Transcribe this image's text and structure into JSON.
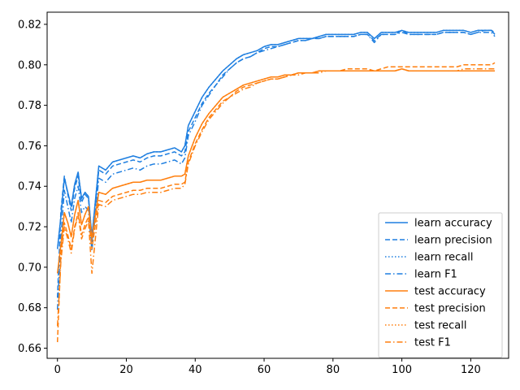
{
  "chart_data": {
    "type": "line",
    "title": "",
    "xlabel": "",
    "ylabel": "",
    "xlim": [
      -3,
      131
    ],
    "ylim": [
      0.655,
      0.826
    ],
    "xticks": [
      0,
      20,
      40,
      60,
      80,
      100,
      120
    ],
    "yticks": [
      0.66,
      0.68,
      0.7,
      0.72,
      0.74,
      0.76,
      0.78,
      0.8,
      0.82
    ],
    "ytick_labels": [
      "0.66",
      "0.68",
      "0.70",
      "0.72",
      "0.74",
      "0.76",
      "0.78",
      "0.80",
      "0.82"
    ],
    "grid": false,
    "legend": "lower-right",
    "colors": {
      "learn": "#1f7fe0",
      "test": "#ff7f0e"
    },
    "x": [
      0,
      1,
      2,
      3,
      4,
      5,
      6,
      7,
      8,
      9,
      10,
      12,
      14,
      16,
      18,
      20,
      22,
      24,
      26,
      28,
      30,
      32,
      34,
      36,
      37,
      38,
      40,
      42,
      44,
      46,
      48,
      50,
      52,
      54,
      56,
      58,
      60,
      62,
      64,
      66,
      68,
      70,
      72,
      74,
      76,
      78,
      80,
      82,
      84,
      86,
      88,
      90,
      92,
      94,
      96,
      98,
      100,
      102,
      104,
      106,
      108,
      110,
      112,
      114,
      116,
      118,
      120,
      122,
      124,
      126,
      127
    ],
    "series": [
      {
        "name": "learn accuracy",
        "group": "learn",
        "dash": "solid",
        "values": [
          0.709,
          0.725,
          0.744,
          0.737,
          0.73,
          0.741,
          0.747,
          0.734,
          0.737,
          0.735,
          0.715,
          0.75,
          0.748,
          0.752,
          0.753,
          0.754,
          0.755,
          0.754,
          0.756,
          0.757,
          0.757,
          0.758,
          0.759,
          0.757,
          0.76,
          0.77,
          0.777,
          0.784,
          0.789,
          0.793,
          0.797,
          0.8,
          0.803,
          0.805,
          0.806,
          0.807,
          0.809,
          0.81,
          0.81,
          0.811,
          0.812,
          0.813,
          0.813,
          0.813,
          0.814,
          0.815,
          0.815,
          0.815,
          0.815,
          0.815,
          0.816,
          0.816,
          0.813,
          0.816,
          0.816,
          0.816,
          0.817,
          0.816,
          0.816,
          0.816,
          0.816,
          0.816,
          0.817,
          0.817,
          0.817,
          0.817,
          0.816,
          0.817,
          0.817,
          0.817,
          0.815
        ]
      },
      {
        "name": "learn precision",
        "group": "learn",
        "dash": "dashed",
        "values": [
          0.685,
          0.728,
          0.745,
          0.736,
          0.728,
          0.739,
          0.745,
          0.732,
          0.736,
          0.734,
          0.712,
          0.748,
          0.746,
          0.75,
          0.751,
          0.752,
          0.753,
          0.752,
          0.754,
          0.755,
          0.755,
          0.756,
          0.757,
          0.755,
          0.757,
          0.767,
          0.774,
          0.781,
          0.786,
          0.79,
          0.795,
          0.798,
          0.801,
          0.803,
          0.804,
          0.806,
          0.808,
          0.809,
          0.809,
          0.81,
          0.811,
          0.812,
          0.812,
          0.813,
          0.813,
          0.814,
          0.814,
          0.814,
          0.814,
          0.814,
          0.815,
          0.815,
          0.812,
          0.815,
          0.815,
          0.815,
          0.817,
          0.815,
          0.815,
          0.815,
          0.815,
          0.815,
          0.816,
          0.816,
          0.816,
          0.816,
          0.815,
          0.816,
          0.817,
          0.817,
          0.816
        ]
      },
      {
        "name": "learn recall",
        "group": "learn",
        "dash": "dotted",
        "values": [
          0.709,
          0.725,
          0.744,
          0.737,
          0.73,
          0.741,
          0.747,
          0.734,
          0.737,
          0.735,
          0.715,
          0.75,
          0.748,
          0.752,
          0.753,
          0.754,
          0.755,
          0.754,
          0.756,
          0.757,
          0.757,
          0.758,
          0.759,
          0.757,
          0.76,
          0.77,
          0.777,
          0.784,
          0.789,
          0.793,
          0.797,
          0.8,
          0.803,
          0.805,
          0.806,
          0.807,
          0.809,
          0.81,
          0.81,
          0.811,
          0.812,
          0.813,
          0.813,
          0.813,
          0.814,
          0.815,
          0.815,
          0.815,
          0.815,
          0.815,
          0.816,
          0.816,
          0.813,
          0.816,
          0.816,
          0.816,
          0.817,
          0.816,
          0.816,
          0.816,
          0.816,
          0.816,
          0.817,
          0.817,
          0.817,
          0.817,
          0.816,
          0.817,
          0.817,
          0.817,
          0.815
        ]
      },
      {
        "name": "learn F1",
        "group": "learn",
        "dash": "dashdot",
        "values": [
          0.679,
          0.715,
          0.738,
          0.73,
          0.722,
          0.734,
          0.74,
          0.727,
          0.73,
          0.728,
          0.708,
          0.744,
          0.742,
          0.746,
          0.747,
          0.748,
          0.749,
          0.748,
          0.75,
          0.751,
          0.751,
          0.752,
          0.753,
          0.751,
          0.754,
          0.765,
          0.772,
          0.78,
          0.785,
          0.79,
          0.794,
          0.798,
          0.801,
          0.803,
          0.804,
          0.806,
          0.807,
          0.808,
          0.809,
          0.81,
          0.811,
          0.812,
          0.812,
          0.813,
          0.813,
          0.814,
          0.814,
          0.814,
          0.814,
          0.814,
          0.815,
          0.815,
          0.811,
          0.815,
          0.815,
          0.815,
          0.816,
          0.815,
          0.815,
          0.815,
          0.815,
          0.815,
          0.816,
          0.816,
          0.816,
          0.816,
          0.815,
          0.816,
          0.816,
          0.816,
          0.814
        ]
      },
      {
        "name": "test accuracy",
        "group": "test",
        "dash": "solid",
        "values": [
          0.697,
          0.711,
          0.727,
          0.722,
          0.715,
          0.726,
          0.733,
          0.721,
          0.726,
          0.73,
          0.714,
          0.737,
          0.736,
          0.739,
          0.74,
          0.741,
          0.742,
          0.742,
          0.743,
          0.743,
          0.743,
          0.744,
          0.745,
          0.745,
          0.746,
          0.755,
          0.764,
          0.771,
          0.776,
          0.78,
          0.784,
          0.786,
          0.788,
          0.79,
          0.791,
          0.792,
          0.793,
          0.794,
          0.794,
          0.795,
          0.795,
          0.796,
          0.796,
          0.796,
          0.797,
          0.797,
          0.797,
          0.797,
          0.797,
          0.797,
          0.797,
          0.797,
          0.797,
          0.797,
          0.797,
          0.797,
          0.798,
          0.797,
          0.797,
          0.797,
          0.797,
          0.797,
          0.797,
          0.797,
          0.797,
          0.797,
          0.797,
          0.797,
          0.797,
          0.797,
          0.797
        ]
      },
      {
        "name": "test precision",
        "group": "test",
        "dash": "dashed",
        "values": [
          0.663,
          0.706,
          0.722,
          0.716,
          0.709,
          0.72,
          0.727,
          0.716,
          0.721,
          0.725,
          0.709,
          0.733,
          0.732,
          0.735,
          0.736,
          0.737,
          0.738,
          0.738,
          0.739,
          0.739,
          0.739,
          0.74,
          0.741,
          0.741,
          0.742,
          0.752,
          0.761,
          0.768,
          0.774,
          0.778,
          0.782,
          0.784,
          0.787,
          0.789,
          0.79,
          0.791,
          0.792,
          0.793,
          0.793,
          0.794,
          0.795,
          0.796,
          0.796,
          0.796,
          0.797,
          0.797,
          0.797,
          0.797,
          0.798,
          0.798,
          0.798,
          0.798,
          0.797,
          0.798,
          0.799,
          0.799,
          0.799,
          0.799,
          0.799,
          0.799,
          0.799,
          0.799,
          0.799,
          0.799,
          0.799,
          0.8,
          0.8,
          0.8,
          0.8,
          0.8,
          0.801
        ]
      },
      {
        "name": "test recall",
        "group": "test",
        "dash": "dotted",
        "values": [
          0.697,
          0.711,
          0.727,
          0.722,
          0.715,
          0.726,
          0.733,
          0.721,
          0.726,
          0.73,
          0.714,
          0.737,
          0.736,
          0.739,
          0.74,
          0.741,
          0.742,
          0.742,
          0.743,
          0.743,
          0.743,
          0.744,
          0.745,
          0.745,
          0.746,
          0.755,
          0.764,
          0.771,
          0.776,
          0.78,
          0.784,
          0.786,
          0.788,
          0.79,
          0.791,
          0.792,
          0.793,
          0.794,
          0.794,
          0.795,
          0.795,
          0.796,
          0.796,
          0.796,
          0.797,
          0.797,
          0.797,
          0.797,
          0.797,
          0.797,
          0.797,
          0.797,
          0.797,
          0.797,
          0.797,
          0.797,
          0.798,
          0.797,
          0.797,
          0.797,
          0.797,
          0.797,
          0.797,
          0.797,
          0.797,
          0.797,
          0.797,
          0.797,
          0.797,
          0.797,
          0.797
        ]
      },
      {
        "name": "test F1",
        "group": "test",
        "dash": "dashdot",
        "values": [
          0.671,
          0.703,
          0.72,
          0.714,
          0.707,
          0.719,
          0.726,
          0.714,
          0.719,
          0.723,
          0.697,
          0.731,
          0.73,
          0.733,
          0.734,
          0.735,
          0.736,
          0.736,
          0.737,
          0.737,
          0.737,
          0.738,
          0.739,
          0.739,
          0.741,
          0.751,
          0.76,
          0.767,
          0.773,
          0.777,
          0.781,
          0.784,
          0.786,
          0.788,
          0.789,
          0.791,
          0.792,
          0.793,
          0.793,
          0.794,
          0.795,
          0.795,
          0.796,
          0.796,
          0.796,
          0.797,
          0.797,
          0.797,
          0.797,
          0.797,
          0.797,
          0.797,
          0.797,
          0.797,
          0.797,
          0.797,
          0.798,
          0.797,
          0.797,
          0.797,
          0.797,
          0.797,
          0.797,
          0.797,
          0.797,
          0.798,
          0.798,
          0.798,
          0.798,
          0.798,
          0.798
        ]
      }
    ]
  }
}
